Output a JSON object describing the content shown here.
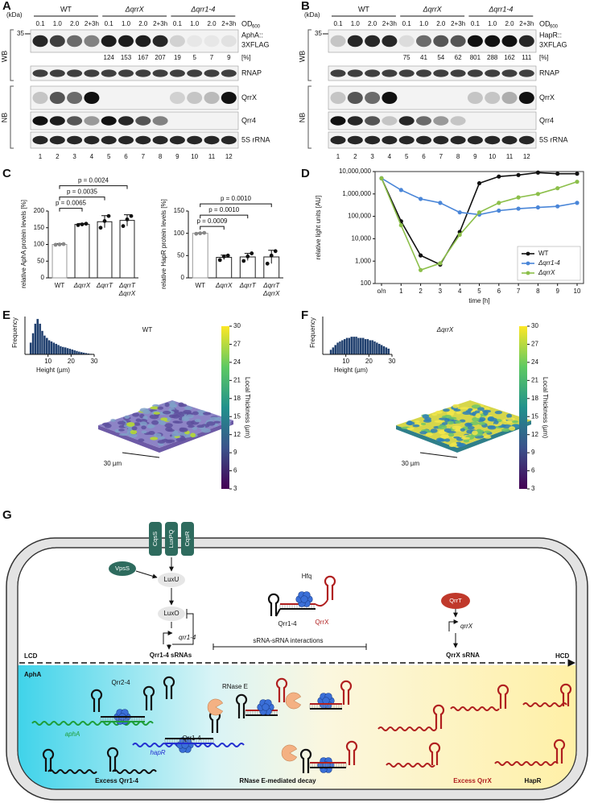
{
  "panel_labels": [
    "A",
    "B",
    "C",
    "D",
    "E",
    "F",
    "G"
  ],
  "blots": [
    {
      "kda": "(kDa)",
      "groups": [
        "WT",
        "ΔqrrX",
        "Δqrr1-4"
      ],
      "od_levels": [
        "0.1",
        "1.0",
        "2.0",
        "2+3h"
      ],
      "od": "OD",
      "od_sub": "600",
      "marker": "35",
      "target": [
        "AphA::",
        "3XFLAG"
      ],
      "percents": [
        124,
        153,
        167,
        207,
        19,
        5,
        7,
        9
      ],
      "percent_unit": "[%]",
      "rows": [
        "RNAP",
        "QrrX",
        "Qrr4",
        "5S rRNA"
      ],
      "lanes": [
        1,
        2,
        3,
        4,
        5,
        6,
        7,
        8,
        9,
        10,
        11,
        12
      ],
      "methods": [
        "WB",
        "NB"
      ]
    },
    {
      "kda": "(kDa)",
      "groups": [
        "WT",
        "ΔqrrX",
        "Δqrr1-4"
      ],
      "od_levels": [
        "0.1",
        "1.0",
        "2.0",
        "2+3h"
      ],
      "od": "OD",
      "od_sub": "600",
      "marker": "35",
      "target": [
        "HapR::",
        "3XFLAG"
      ],
      "percents": [
        75,
        41,
        54,
        62,
        801,
        288,
        162,
        111
      ],
      "percent_unit": "[%]",
      "rows": [
        "RNAP",
        "QrrX",
        "Qrr4",
        "5S rRNA"
      ],
      "lanes": [
        1,
        2,
        3,
        4,
        5,
        6,
        7,
        8,
        9,
        10,
        11,
        12
      ],
      "methods": [
        "WB",
        "NB"
      ]
    }
  ],
  "chart_data": [
    {
      "type": "bar",
      "ylabel": "relative AphA protein levels [%]",
      "categories": [
        "WT",
        "ΔqrrX",
        "ΔqrrT",
        [
          "ΔqrrT",
          "ΔqrrX"
        ]
      ],
      "values": [
        100,
        160,
        168,
        172
      ],
      "errors": [
        2,
        3,
        18,
        17
      ],
      "points": [
        [
          99,
          100,
          101
        ],
        [
          158,
          160,
          162
        ],
        [
          150,
          170,
          185
        ],
        [
          155,
          175,
          185
        ]
      ],
      "color": "#ffffff",
      "ylim": [
        0,
        200
      ],
      "yticks": [
        0,
        50,
        100,
        150,
        200
      ],
      "p_values": [
        "p = 0.0065",
        "p = 0.0035",
        "p = 0.0024"
      ]
    },
    {
      "type": "bar",
      "ylabel": "relative HapR protein levels [%]",
      "categories": [
        "WT",
        "ΔqrrX",
        "ΔqrrT",
        [
          "ΔqrrT",
          "ΔqrrX"
        ]
      ],
      "values": [
        100,
        46,
        47,
        47
      ],
      "errors": [
        1,
        5,
        8,
        15
      ],
      "points": [
        [
          99,
          100,
          101
        ],
        [
          40,
          48,
          50
        ],
        [
          38,
          48,
          55
        ],
        [
          32,
          50,
          60
        ]
      ],
      "color": "#ffffff",
      "ylim": [
        0,
        150
      ],
      "yticks": [
        0,
        50,
        100,
        150
      ],
      "p_values": [
        "p = 0.0009",
        "p = 0.0010",
        "p = 0.0010"
      ]
    },
    {
      "type": "line",
      "xlabel": "time [h]",
      "ylabel": "relative light units [AU]",
      "log": true,
      "categories": [
        "o/n",
        "1",
        "2",
        "3",
        "4",
        "5",
        "6",
        "7",
        "8",
        "9",
        "10"
      ],
      "ylim": [
        100,
        10000000
      ],
      "yticks": [
        100,
        {
          "value": 1000,
          "label": "1,000"
        },
        {
          "value": 10000,
          "label": "10,000"
        },
        {
          "value": 100000,
          "label": "100,000"
        },
        {
          "value": 1000000,
          "label": "1,000,000"
        },
        {
          "value": 10000000,
          "label": "10,000,000"
        }
      ],
      "legend": "lower right",
      "series": [
        {
          "name": "WT",
          "color": "#111111",
          "values": [
            5000000,
            60000,
            1800,
            700,
            20000,
            3000000,
            6000000,
            7000000,
            9000000,
            8000000,
            8000000
          ]
        },
        {
          "name": "Δqrr1-4",
          "color": "#4a86d8",
          "values": [
            5000000,
            1500000,
            600000,
            400000,
            150000,
            120000,
            180000,
            220000,
            250000,
            280000,
            400000
          ]
        },
        {
          "name": "ΔqrrX",
          "color": "#8cbf4a",
          "values": [
            5000000,
            40000,
            400,
            800,
            15000,
            150000,
            400000,
            700000,
            1000000,
            1800000,
            3500000
          ]
        }
      ]
    },
    {
      "type": "histogram",
      "title": "WT",
      "xlabel": "Height (µm)",
      "ylabel": "Frequency",
      "color": "#1f3f6e",
      "bins": [
        2,
        3,
        4,
        5,
        6,
        7,
        8,
        9,
        10,
        11,
        12,
        13,
        14,
        15,
        16,
        17,
        18,
        19,
        20,
        21,
        22,
        23,
        24,
        25,
        26,
        27,
        28,
        29,
        30
      ],
      "counts": [
        5,
        9,
        13,
        15,
        13,
        10,
        8,
        7,
        6,
        5.5,
        5,
        4.5,
        4,
        3.5,
        3.2,
        3,
        2.7,
        2.4,
        2.1,
        1.8,
        1.5,
        1.2,
        1,
        0.8,
        0.6,
        0.4,
        0.3,
        0.2
      ],
      "xlim": [
        0,
        30
      ],
      "xticks": [
        10,
        20,
        30
      ],
      "ylim": [
        0,
        16
      ],
      "colorbar": {
        "label": "Local Thickness (µm)",
        "range": [
          3,
          30
        ],
        "ticks": [
          3,
          6,
          9,
          12,
          15,
          18,
          21,
          24,
          27,
          30
        ]
      },
      "scale_bar": "30 µm"
    },
    {
      "type": "histogram",
      "title": "ΔqrrX",
      "xlabel": "Height (µm)",
      "ylabel": "Frequency",
      "color": "#1f3f6e",
      "bins": [
        3,
        4,
        5,
        6,
        7,
        8,
        9,
        10,
        11,
        12,
        13,
        14,
        15,
        16,
        17,
        18,
        19,
        20,
        21,
        22,
        23,
        24,
        25,
        26,
        27,
        28,
        29
      ],
      "counts": [
        2,
        3,
        4,
        5,
        5.5,
        6,
        6.5,
        7,
        7,
        7.5,
        7.5,
        7.5,
        7,
        7,
        7,
        6.5,
        6.5,
        6,
        6,
        5.5,
        5,
        4.5,
        4,
        3.5,
        3,
        2.5
      ],
      "xlim": [
        0,
        30
      ],
      "xticks": [
        10,
        20,
        30
      ],
      "ylim": [
        0,
        16
      ],
      "colorbar": {
        "label": "Local Thickness (µm)",
        "range": [
          3,
          30
        ],
        "ticks": [
          3,
          6,
          9,
          12,
          15,
          18,
          21,
          24,
          27,
          30
        ]
      },
      "scale_bar": "30 µm"
    }
  ],
  "diagram": {
    "receptors": [
      "CqsS",
      "LuxPQ",
      "CqsR"
    ],
    "vpss": "VpsS",
    "luxu": "LuxU",
    "luxo": "LuxO",
    "qrr_gene": "qrr1-4",
    "qrr_srnas": "Qrr1-4 sRNAs",
    "hfq": "Hfq",
    "qrrx": "QrrX",
    "qrr14": "Qrr1-4",
    "interactions": "sRNA-sRNA interactions",
    "qrrt": "QrrT",
    "qrrx_gene": "qrrX",
    "qrrx_srna": "QrrX sRNA",
    "lcd": "LCD",
    "hcd": "HCD",
    "apha": "AphA",
    "qrr24": "Qrr2-4",
    "apha_mrna": "aphA",
    "rnase_e": "RNase E",
    "qrr14_bottom": "Qrr1-4",
    "hapr_mrna": "hapR",
    "excess_qrr14": "Excess Qrr1-4",
    "decay": "RNase E-mediated decay",
    "excess_qrrx": "Excess QrrX",
    "hapr": "HapR"
  }
}
